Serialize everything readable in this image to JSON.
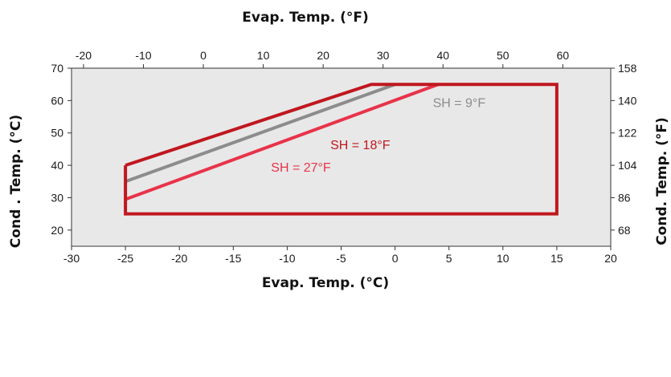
{
  "chart_data": {
    "type": "line",
    "xlabel": "Evap. Temp. (°C)",
    "ylabel": "Cond . Temp. (°C)",
    "x2label": "Evap. Temp. (°F)",
    "y2label": "Cond. Temp. (°F)",
    "xlim": [
      -30,
      20
    ],
    "ylim": [
      15,
      70
    ],
    "x_ticks": [
      -30,
      -25,
      -20,
      -15,
      -10,
      -5,
      0,
      5,
      10,
      15,
      20
    ],
    "y_ticks": [
      20,
      30,
      40,
      50,
      60,
      70
    ],
    "x2_ticks": [
      -20,
      -10,
      0,
      10,
      20,
      30,
      40,
      50,
      60
    ],
    "y2_ticks": [
      68,
      86,
      104,
      122,
      140,
      158
    ],
    "grid": false,
    "background": "#e8e8e8",
    "series": [
      {
        "name": "SH = 9°F",
        "color": "#8c8c8c",
        "x": [
          -25,
          0
        ],
        "y": [
          35,
          65
        ],
        "label_at": [
          3.5,
          58
        ]
      },
      {
        "name": "SH = 18°F",
        "color": "#c0171f",
        "x": [
          -25,
          -2.2,
          15,
          15,
          -25,
          -25
        ],
        "y": [
          40,
          65,
          65,
          25,
          25,
          40
        ],
        "label_at": [
          -6,
          45
        ]
      },
      {
        "name": "SH = 27°F",
        "color": "#e8334a",
        "x": [
          -25,
          4
        ],
        "y": [
          29.5,
          65
        ],
        "label_at": [
          -11.5,
          38
        ]
      }
    ]
  }
}
